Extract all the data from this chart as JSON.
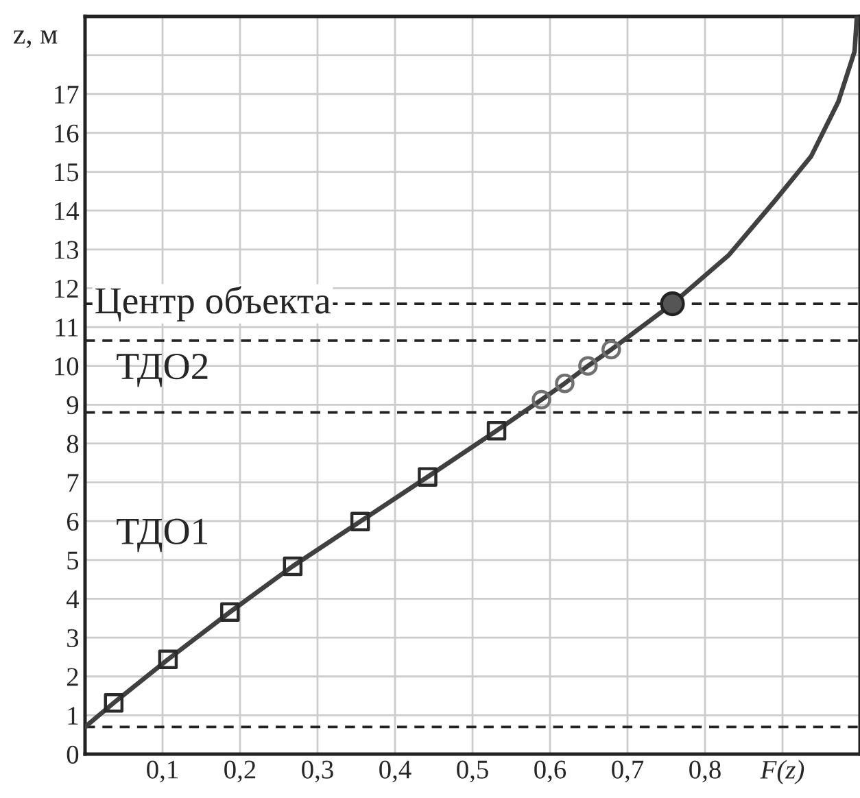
{
  "chart_data": {
    "type": "line",
    "xlabel": "F(z)",
    "ylabel": "z, м",
    "xlim": [
      0,
      1.0
    ],
    "ylim": [
      0,
      19
    ],
    "xticks": [
      {
        "value": 0.1,
        "label": "0,1"
      },
      {
        "value": 0.2,
        "label": "0,2"
      },
      {
        "value": 0.3,
        "label": "0,3"
      },
      {
        "value": 0.4,
        "label": "0,4"
      },
      {
        "value": 0.5,
        "label": "0,5"
      },
      {
        "value": 0.6,
        "label": "0,6"
      },
      {
        "value": 0.7,
        "label": "0,7"
      },
      {
        "value": 0.8,
        "label": "0,8"
      },
      {
        "value": 0.9,
        "label": null
      }
    ],
    "yticks": [
      0,
      1,
      2,
      3,
      4,
      5,
      6,
      7,
      8,
      9,
      10,
      11,
      12,
      13,
      14,
      15,
      16,
      17,
      {
        "value": 18,
        "label": null
      }
    ],
    "grid": true,
    "line_style": "solid",
    "series": [
      {
        "color": "#404040",
        "marker": "none",
        "x": [
          0,
          0.037,
          0.107,
          0.187,
          0.268,
          0.355,
          0.442,
          0.531,
          0.589,
          0.619,
          0.649,
          0.679,
          0.758,
          0.831,
          0.89,
          0.937,
          0.972,
          0.993,
          0.996
        ],
        "values": [
          0.7,
          1.32,
          2.44,
          3.66,
          4.84,
          5.99,
          7.14,
          8.33,
          9.13,
          9.55,
          10.0,
          10.42,
          11.6,
          12.86,
          14.25,
          15.4,
          16.8,
          18.1,
          19.0
        ]
      },
      {
        "type": "scatter",
        "color": "#2a2a2a",
        "marker": "square",
        "x": [
          0.037,
          0.107,
          0.187,
          0.268,
          0.355,
          0.442,
          0.531
        ],
        "values": [
          1.32,
          2.44,
          3.66,
          4.84,
          5.99,
          7.14,
          8.33
        ]
      },
      {
        "type": "scatter",
        "color": "#707070",
        "marker": "circle",
        "x": [
          0.589,
          0.619,
          0.649,
          0.679
        ],
        "values": [
          9.13,
          9.55,
          10.0,
          10.42
        ]
      },
      {
        "type": "scatter",
        "color": "#555555",
        "marker": "circle",
        "x": [
          0.758
        ],
        "values": [
          11.6
        ]
      }
    ],
    "ref_lines": [
      {
        "axis": "y",
        "value": 0.7,
        "line_style": "dashed"
      },
      {
        "axis": "y",
        "value": 8.8,
        "line_style": "dashed"
      },
      {
        "axis": "y",
        "value": 10.65,
        "line_style": "dashed"
      },
      {
        "axis": "y",
        "value": 11.6,
        "label": "Центр объекта",
        "line_style": "dashed"
      }
    ],
    "annotations": [
      "ТДО2",
      "ТДО1"
    ]
  }
}
